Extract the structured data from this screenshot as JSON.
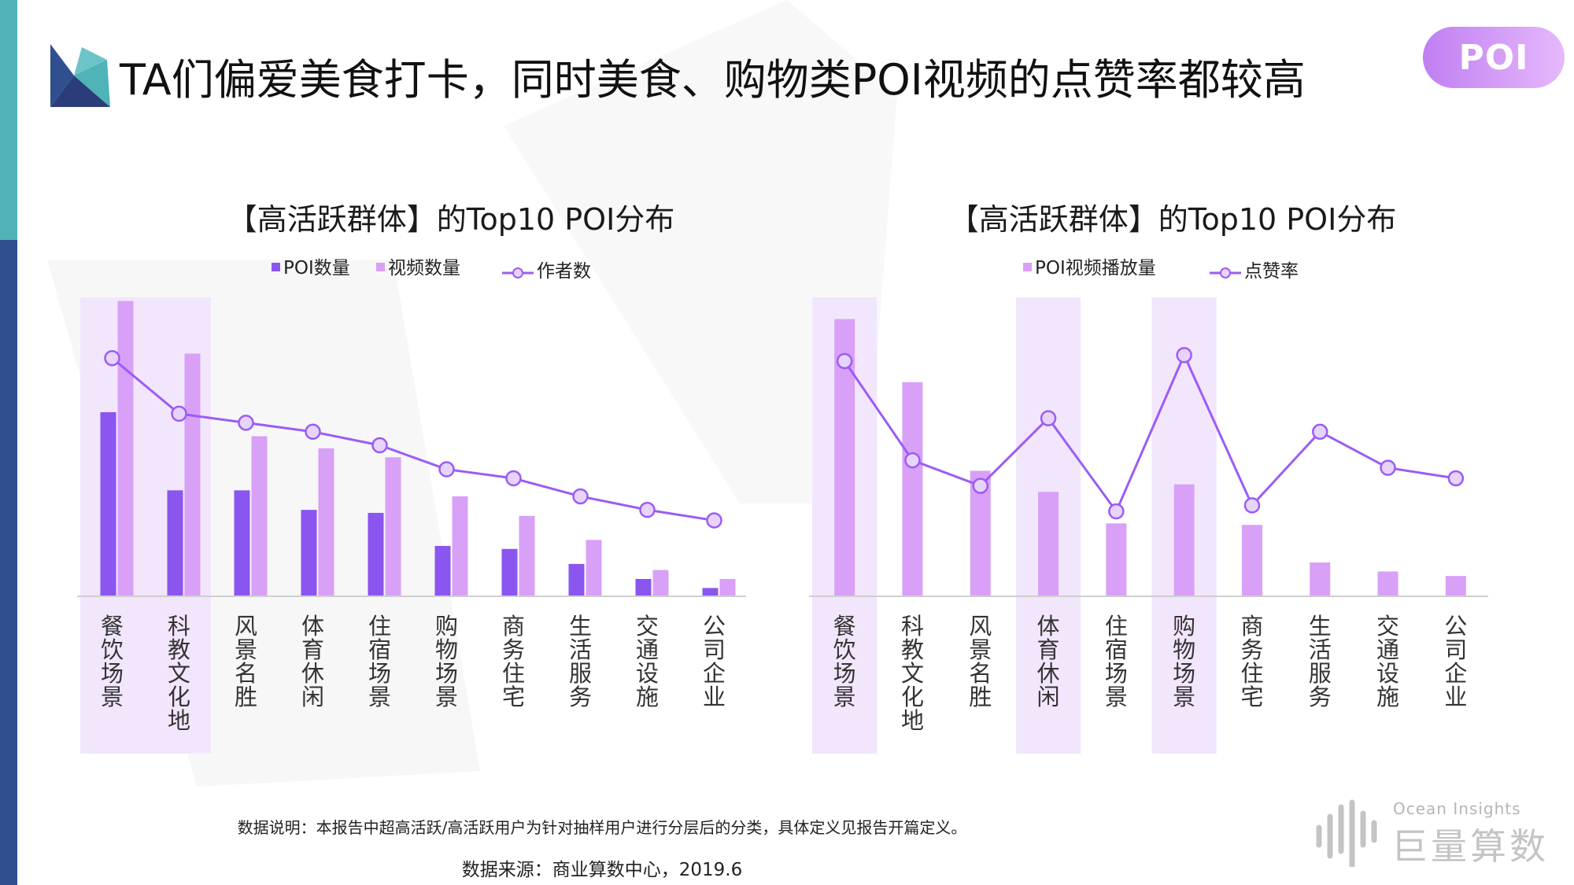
{
  "page": {
    "title": "TA们偏爱美食打卡，同时美食、购物类POI视频的点赞率都较高",
    "badge": "POI",
    "footnote": "数据说明：本报告中超高活跃/高活跃用户为针对抽样用户进行分层后的分类，具体定义见报告开篇定义。",
    "source": "数据来源：商业算数中心，2019.6",
    "brand_en": "Ocean Insights",
    "brand_cn": "巨量算数"
  },
  "colors": {
    "dark_purple": "#8b55f0",
    "light_purple": "#d9a0f7",
    "line": "#9b5cf5",
    "highlight": "#f2e6fc",
    "teal": "#4fb3b8",
    "navy": "#2f4f8f"
  },
  "chart_data": [
    {
      "type": "bar",
      "title": "【高活跃群体】的Top10 POI分布",
      "categories": [
        "餐饮场景",
        "科教文化地",
        "风景名胜",
        "体育休闲",
        "住宿场景",
        "购物场景",
        "商务住宅",
        "生活服务",
        "交通设施",
        "公司企业"
      ],
      "series": [
        {
          "name": "POI数量",
          "kind": "bar",
          "values": [
            6.1,
            3.5,
            3.5,
            2.85,
            2.75,
            1.65,
            1.55,
            1.05,
            0.55,
            0.25
          ]
        },
        {
          "name": "视频数量",
          "kind": "bar",
          "values": [
            9.8,
            8.05,
            5.3,
            4.9,
            4.6,
            3.3,
            2.65,
            1.85,
            0.85,
            0.55
          ]
        },
        {
          "name": "作者数",
          "kind": "line",
          "values": [
            7.9,
            6.05,
            5.75,
            5.45,
            5.0,
            4.2,
            3.9,
            3.3,
            2.85,
            2.5
          ]
        }
      ],
      "highlight": [
        0,
        1
      ],
      "xlabel": "",
      "ylabel": "",
      "ylim": [
        0,
        10
      ],
      "legend": "top"
    },
    {
      "type": "bar",
      "title": "【高活跃群体】的Top10 POI分布",
      "categories": [
        "餐饮场景",
        "科教文化地",
        "风景名胜",
        "体育休闲",
        "住宿场景",
        "购物场景",
        "商务住宅",
        "生活服务",
        "交通设施",
        "公司企业"
      ],
      "series": [
        {
          "name": "POI视频播放量",
          "kind": "bar",
          "values": [
            9.2,
            7.1,
            4.15,
            3.45,
            2.4,
            3.7,
            2.35,
            1.1,
            0.8,
            0.65
          ]
        },
        {
          "name": "点赞率",
          "kind": "line",
          "values": [
            7.8,
            4.5,
            3.65,
            5.9,
            2.8,
            8.0,
            3.0,
            5.45,
            4.25,
            3.9
          ]
        }
      ],
      "highlight": [
        0,
        3,
        5
      ],
      "xlabel": "",
      "ylabel": "",
      "ylim": [
        0,
        10
      ],
      "legend": "top"
    }
  ]
}
